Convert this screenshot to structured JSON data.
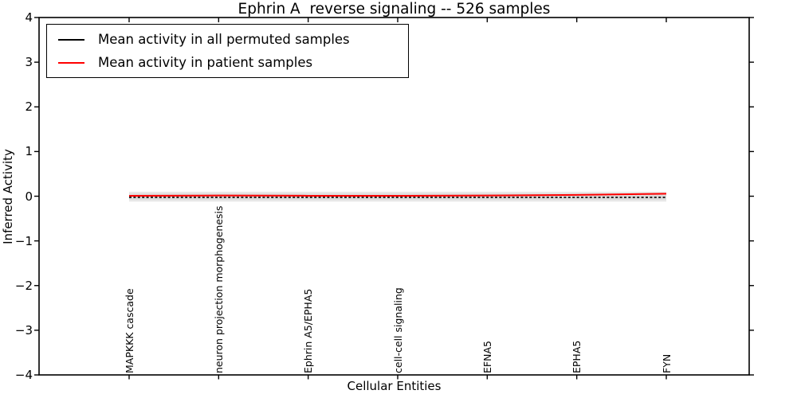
{
  "title": "Ephrin A  reverse signaling -- 526 samples",
  "legend": {
    "position": "upper left",
    "items": [
      {
        "label": "Mean activity in all permuted samples",
        "color": "#000000"
      },
      {
        "label": "Mean activity in patient samples",
        "color": "#ff0000"
      }
    ]
  },
  "axes": {
    "xlabel": "Cellular Entities",
    "ylabel": "Inferred Activity"
  },
  "chart_data": {
    "type": "line",
    "title": "Ephrin A  reverse signaling -- 526 samples",
    "xlabel": "Cellular Entities",
    "ylabel": "Inferred Activity",
    "ylim": [
      -4,
      4
    ],
    "grid": false,
    "legend_position": "upper left",
    "y_tick_values": [
      4,
      3,
      2,
      1,
      0,
      -1,
      -2,
      -3,
      -4
    ],
    "y_tick_labels": [
      "4",
      "3",
      "2",
      "1",
      "0",
      "−1",
      "−2",
      "−3",
      "−4"
    ],
    "categories": [
      "MAPKKK cascade",
      "neuron projection morphogenesis",
      "Ephrin A5/EPHA5",
      "cell-cell signaling",
      "EFNA5",
      "EPHA5",
      "FYN"
    ],
    "series": [
      {
        "name": "Mean activity in all permuted samples",
        "color": "#000000",
        "style": "dashed",
        "values": [
          -0.025,
          -0.025,
          -0.025,
          -0.025,
          -0.025,
          -0.025,
          -0.025
        ]
      },
      {
        "name": "Mean activity in patient samples",
        "color": "#ff0000",
        "style": "solid",
        "values": [
          0.01,
          0.015,
          0.01,
          0.008,
          0.015,
          0.03,
          0.055
        ]
      }
    ],
    "bands": [
      {
        "name": "permuted-std-band",
        "color": "#e8e8e8",
        "upper": [
          0.1,
          0.1,
          0.1,
          0.1,
          0.1,
          0.1,
          0.1
        ],
        "lower": [
          -0.12,
          -0.12,
          -0.12,
          -0.12,
          -0.12,
          -0.12,
          -0.12
        ]
      },
      {
        "name": "inner-std-band",
        "color": "#dcdcdc",
        "upper": [
          0.06,
          0.06,
          0.06,
          0.06,
          0.06,
          0.06,
          0.06
        ],
        "lower": [
          -0.08,
          -0.08,
          -0.08,
          -0.08,
          -0.08,
          -0.08,
          -0.08
        ]
      }
    ]
  }
}
